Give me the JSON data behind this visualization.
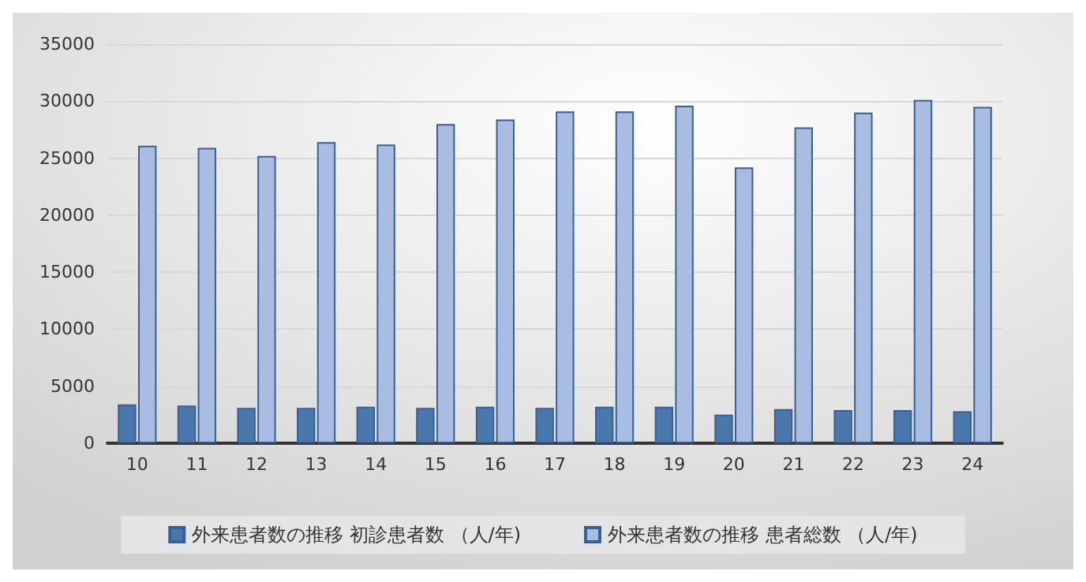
{
  "chart_data": {
    "type": "bar",
    "categories": [
      "10",
      "11",
      "12",
      "13",
      "14",
      "15",
      "16",
      "17",
      "18",
      "19",
      "20",
      "21",
      "22",
      "23",
      "24"
    ],
    "series": [
      {
        "name": "外来患者数の推移 初診患者数 （人/年)",
        "color": "#4a78ad",
        "values": [
          3400,
          3300,
          3100,
          3100,
          3200,
          3100,
          3200,
          3100,
          3200,
          3200,
          2500,
          3000,
          2900,
          2900,
          2800
        ]
      },
      {
        "name": "外来患者数の推移 患者総数 （人/年)",
        "color": "#a9bde3",
        "values": [
          26100,
          25900,
          25200,
          26400,
          26200,
          28000,
          28400,
          29100,
          29100,
          29600,
          24200,
          27700,
          29000,
          30100,
          29500
        ]
      }
    ],
    "ylim": [
      0,
      35000
    ],
    "yticks": [
      0,
      5000,
      10000,
      15000,
      20000,
      25000,
      30000,
      35000
    ],
    "grid": "y",
    "legend": "bottom"
  }
}
